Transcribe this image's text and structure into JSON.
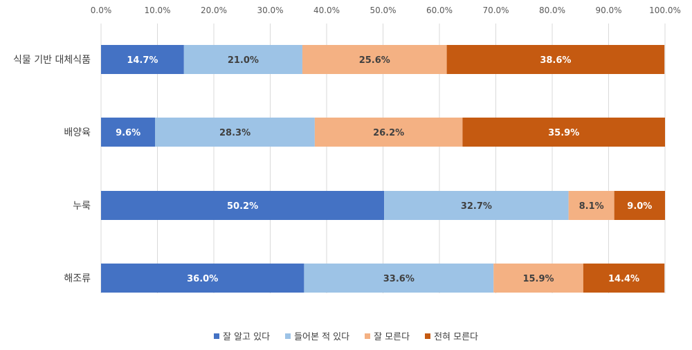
{
  "chart_data": {
    "type": "bar",
    "orientation": "horizontal",
    "stacked": true,
    "categories": [
      "식물 기반 대체식품",
      "배양육",
      "누룩",
      "해조류"
    ],
    "series": [
      {
        "name": "잘 알고 있다",
        "color": "#4472C4",
        "label_color": "#FFFFFF",
        "values": [
          14.7,
          9.6,
          50.2,
          36.0
        ],
        "labels": [
          "14.7%",
          "9.6%",
          "50.2%",
          "36.0%"
        ]
      },
      {
        "name": "들어본 적 있다",
        "color": "#9DC3E6",
        "label_color": "#404040",
        "values": [
          21.0,
          28.3,
          32.7,
          33.6
        ],
        "labels": [
          "21.0%",
          "28.3%",
          "32.7%",
          "33.6%"
        ]
      },
      {
        "name": "잘 모른다",
        "color": "#F4B183",
        "label_color": "#404040",
        "values": [
          25.6,
          26.2,
          8.1,
          15.9
        ],
        "labels": [
          "25.6%",
          "26.2%",
          "8.1%",
          "15.9%"
        ]
      },
      {
        "name": "전혀 모른다",
        "color": "#C55A11",
        "label_color": "#FFFFFF",
        "values": [
          38.6,
          35.9,
          9.0,
          14.4
        ],
        "labels": [
          "38.6%",
          "35.9%",
          "9.0%",
          "14.4%"
        ]
      }
    ],
    "xaxis_ticks": [
      "0.0%",
      "10.0%",
      "20.0%",
      "30.0%",
      "40.0%",
      "50.0%",
      "60.0%",
      "70.0%",
      "80.0%",
      "90.0%",
      "100.0%"
    ],
    "xlim": [
      0,
      100
    ],
    "grid": true,
    "legend_position": "bottom"
  }
}
